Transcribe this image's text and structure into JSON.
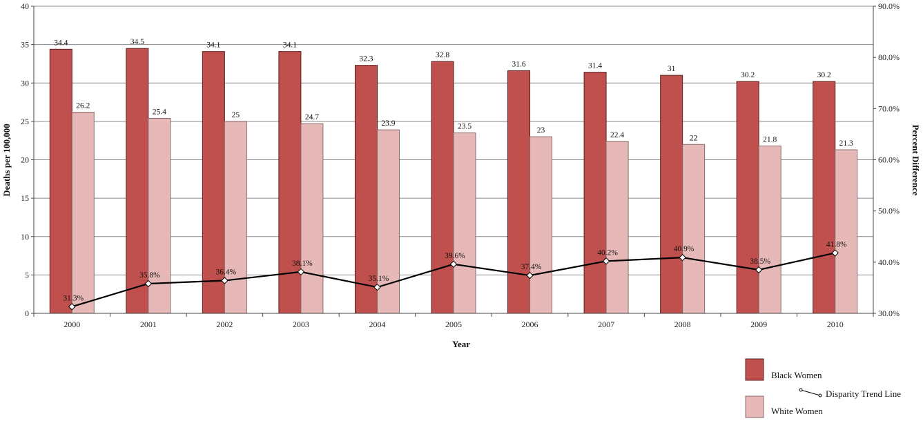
{
  "chart_data": {
    "type": "bar",
    "title": "",
    "xlabel": "Year",
    "ylabel": "Deaths per 100,000",
    "y2label": "Percent Difference",
    "categories": [
      "2000",
      "2001",
      "2002",
      "2003",
      "2004",
      "2005",
      "2006",
      "2007",
      "2008",
      "2009",
      "2010"
    ],
    "ylim": [
      0,
      40
    ],
    "yticks": [
      0,
      5,
      10,
      15,
      20,
      25,
      30,
      35,
      40
    ],
    "y2lim": [
      30,
      90
    ],
    "y2ticks": [
      "30.0%",
      "40.0%",
      "50.0%",
      "60.0%",
      "70.0%",
      "80.0%",
      "90.0%"
    ],
    "y2tick_values": [
      30,
      40,
      50,
      60,
      70,
      80,
      90
    ],
    "grid": true,
    "legend_position": "bottom-right",
    "series": [
      {
        "name": "Black Women",
        "kind": "bar",
        "color": "#c0504d",
        "values": [
          34.4,
          34.5,
          34.1,
          34.1,
          32.3,
          32.8,
          31.6,
          31.4,
          31,
          30.2,
          30.2
        ],
        "labels": [
          "34.4",
          "34.5",
          "34.1",
          "34.1",
          "32.3",
          "32.8",
          "31.6",
          "31.4",
          "31",
          "30.2",
          "30.2"
        ]
      },
      {
        "name": "White Women",
        "kind": "bar",
        "color": "#e6b9b8",
        "values": [
          26.2,
          25.4,
          25,
          24.7,
          23.9,
          23.5,
          23,
          22.4,
          22,
          21.8,
          21.3
        ],
        "labels": [
          "26.2",
          "25.4",
          "25",
          "24.7",
          "23.9",
          "23.5",
          "23",
          "22.4",
          "22",
          "21.8",
          "21.3"
        ]
      },
      {
        "name": "Disparity Trend Line",
        "kind": "line",
        "axis": "secondary",
        "color": "#000000",
        "values": [
          31.3,
          35.8,
          36.4,
          38.1,
          35.1,
          39.6,
          37.4,
          40.2,
          40.9,
          38.5,
          41.8
        ],
        "labels": [
          "31.3%",
          "35.8%",
          "36.4%",
          "38.1%",
          "35.1%",
          "39.6%",
          "37.4%",
          "40.2%",
          "40.9%",
          "38.5%",
          "41.8%"
        ]
      }
    ]
  }
}
